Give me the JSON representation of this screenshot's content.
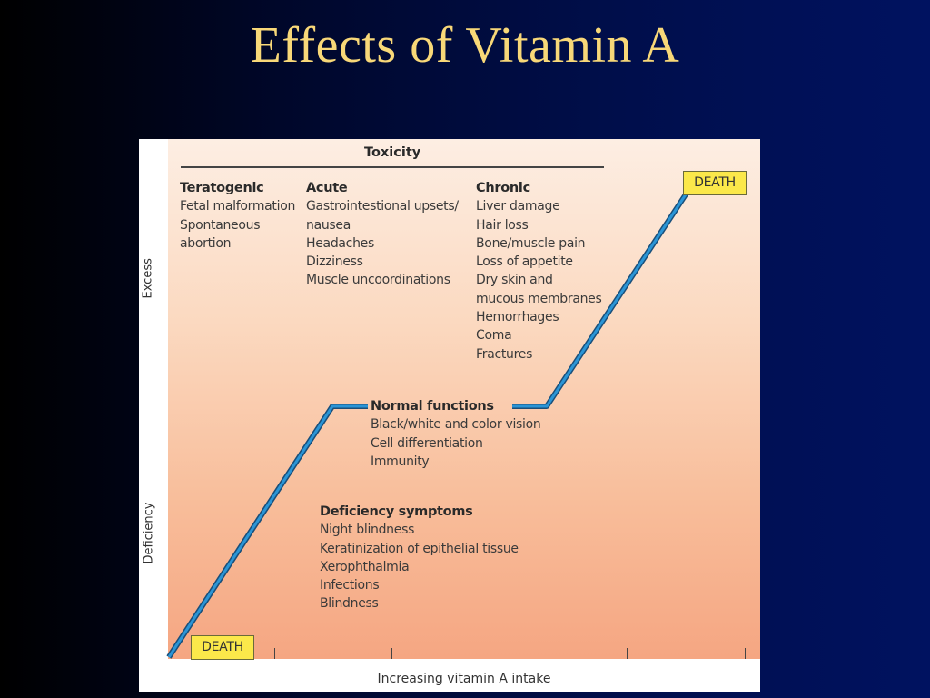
{
  "slide": {
    "title": "Effects of Vitamin A"
  },
  "figure": {
    "y_axis": {
      "top_label": "Excess",
      "bottom_label": "Deficiency"
    },
    "x_axis_label": "Increasing vitamin A intake",
    "toxicity": {
      "title": "Toxicity",
      "teratogenic": {
        "heading": "Teratogenic",
        "items": [
          "Fetal malformation",
          "Spontaneous",
          "abortion"
        ]
      },
      "acute": {
        "heading": "Acute",
        "items": [
          "Gastrointestional upsets/",
          "nausea",
          "Headaches",
          "Dizziness",
          "Muscle uncoordinations"
        ]
      },
      "chronic": {
        "heading": "Chronic",
        "items": [
          "Liver damage",
          "Hair loss",
          "Bone/muscle pain",
          "Loss of appetite",
          "Dry skin and",
          "mucous membranes",
          "Hemorrhages",
          "Coma",
          "Fractures"
        ]
      }
    },
    "normal": {
      "heading": "Normal functions",
      "items": [
        "Black/white and color vision",
        "Cell differentiation",
        "Immunity"
      ]
    },
    "deficiency": {
      "heading": "Deficiency symptoms",
      "items": [
        "Night blindness",
        "Keratinization of epithelial tissue",
        "Xerophthalmia",
        "Infections",
        "Blindness"
      ]
    },
    "death_top": "DEATH",
    "death_bottom": "DEATH",
    "colors": {
      "curve": "#1f7fc0",
      "title": "#f8d878",
      "death_box": "#fbe84a"
    }
  }
}
